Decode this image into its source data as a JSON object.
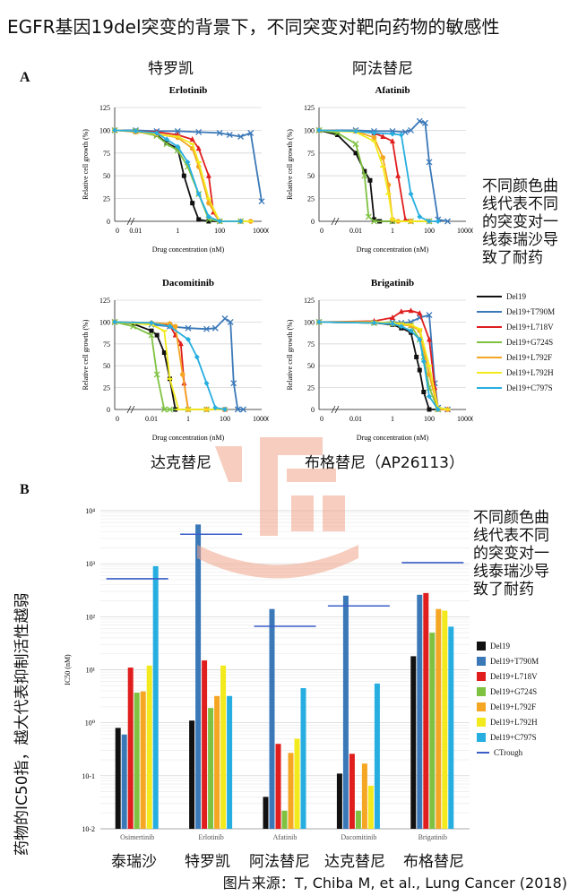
{
  "title": "EGFR基因19del突变的背景下，不同突变对靶向药物的敏感性",
  "panel_a_label": "A",
  "panel_b_label": "B",
  "side_note": "不同颜色曲线代表不同的突变对一线泰瑞沙导致了耐药",
  "side_note_b": "不同颜色曲线代表不同的突变对一线泰瑞沙导致了耐药",
  "vertical_note": "药物的IC50指，越大代表抑制活性越弱",
  "source": "图片来源：T, Chiba M, et al., Lung Cancer (2018)",
  "colors": {
    "Del19": "#111111",
    "Del19+T790M": "#3a78b8",
    "Del19+L718V": "#e01e1e",
    "Del19+G724S": "#7fc241",
    "Del19+L792F": "#f5a623",
    "Del19+L792H": "#f2ea1c",
    "Del19+C797S": "#27aee0"
  },
  "chart_data": [
    {
      "type": "line",
      "panel": "A",
      "cn_title": "特罗凯",
      "title": "Erlotinib",
      "xlabel": "Drug concentration (nM)",
      "ylabel": "Relative cell growth (%)",
      "xscale": "log",
      "xticks": [
        "0",
        "0.01",
        "1",
        "100",
        "10000"
      ],
      "xrange": [
        0.001,
        10000
      ],
      "yticks": [
        "0",
        "25",
        "50",
        "75",
        "100",
        "125"
      ],
      "ylim": [
        0,
        125
      ],
      "series": [
        {
          "name": "Del19",
          "x": [
            0.001,
            0.01,
            0.1,
            0.3,
            1,
            2,
            5,
            10,
            30,
            100,
            1000
          ],
          "y": [
            100,
            99,
            95,
            86,
            80,
            50,
            20,
            2,
            0,
            0,
            0
          ]
        },
        {
          "name": "Del19+T790M",
          "x": [
            0.001,
            0.01,
            0.1,
            1,
            10,
            100,
            300,
            1000,
            3000,
            10000
          ],
          "y": [
            100,
            100,
            99,
            99,
            98,
            97,
            95,
            93,
            97,
            22
          ]
        },
        {
          "name": "Del19+L718V",
          "x": [
            0.001,
            0.01,
            0.1,
            1,
            5,
            10,
            30,
            50,
            100,
            1000
          ],
          "y": [
            100,
            99,
            98,
            95,
            90,
            80,
            50,
            10,
            0,
            0
          ]
        },
        {
          "name": "Del19+G724S",
          "x": [
            0.001,
            0.01,
            0.1,
            0.3,
            1,
            3,
            10,
            30,
            100,
            1000
          ],
          "y": [
            100,
            99,
            94,
            85,
            78,
            60,
            30,
            2,
            0,
            0
          ]
        },
        {
          "name": "Del19+L792F",
          "x": [
            0.001,
            0.01,
            0.1,
            1,
            5,
            10,
            30,
            100,
            1000,
            3000
          ],
          "y": [
            100,
            98,
            96,
            92,
            80,
            60,
            20,
            0,
            0,
            0
          ]
        },
        {
          "name": "Del19+L792H",
          "x": [
            0.001,
            0.01,
            0.1,
            1,
            5,
            10,
            30,
            100,
            1000,
            3000
          ],
          "y": [
            100,
            99,
            96,
            93,
            85,
            65,
            25,
            0,
            0,
            0
          ]
        },
        {
          "name": "Del19+C797S",
          "x": [
            0.001,
            0.01,
            0.1,
            0.3,
            1,
            3,
            10,
            30,
            100,
            1000
          ],
          "y": [
            100,
            99,
            97,
            90,
            82,
            65,
            30,
            5,
            0,
            0
          ]
        }
      ]
    },
    {
      "type": "line",
      "panel": "A",
      "cn_title": "阿法替尼",
      "title": "Afatinib",
      "xlabel": "Drug concentration (nM)",
      "ylabel": "Relative cell growth (%)",
      "xscale": "log",
      "xticks": [
        "0",
        "0.01",
        "1",
        "100",
        "10000"
      ],
      "xrange": [
        0.0001,
        10000
      ],
      "yticks": [
        "0",
        "25",
        "50",
        "75",
        "100",
        "125"
      ],
      "ylim": [
        0,
        125
      ],
      "series": [
        {
          "name": "Del19",
          "x": [
            0.0001,
            0.001,
            0.01,
            0.03,
            0.06,
            0.1,
            0.2,
            1,
            10,
            100
          ],
          "y": [
            100,
            95,
            75,
            55,
            45,
            2,
            0,
            0,
            0,
            0
          ]
        },
        {
          "name": "Del19+T790M",
          "x": [
            0.0001,
            0.01,
            0.1,
            1,
            5,
            10,
            30,
            60,
            100,
            300,
            1000
          ],
          "y": [
            100,
            100,
            99,
            99,
            98,
            100,
            110,
            108,
            65,
            2,
            0
          ]
        },
        {
          "name": "Del19+L718V",
          "x": [
            0.0001,
            0.01,
            0.1,
            0.3,
            1,
            2,
            5,
            10,
            100
          ],
          "y": [
            100,
            99,
            97,
            93,
            88,
            50,
            2,
            0,
            0
          ]
        },
        {
          "name": "Del19+G724S",
          "x": [
            0.0001,
            0.001,
            0.01,
            0.03,
            0.05,
            0.1,
            1,
            10,
            100
          ],
          "y": [
            100,
            97,
            85,
            50,
            5,
            0,
            0,
            0,
            0
          ]
        },
        {
          "name": "Del19+L792F",
          "x": [
            0.0001,
            0.01,
            0.1,
            0.3,
            0.6,
            1,
            2,
            10,
            100
          ],
          "y": [
            100,
            99,
            92,
            70,
            40,
            2,
            0,
            0,
            0
          ]
        },
        {
          "name": "Del19+L792H",
          "x": [
            0.0001,
            0.01,
            0.1,
            0.3,
            0.6,
            1,
            2,
            10,
            100
          ],
          "y": [
            100,
            98,
            88,
            60,
            30,
            2,
            0,
            0,
            0
          ]
        },
        {
          "name": "Del19+C797S",
          "x": [
            0.0001,
            0.01,
            0.1,
            1,
            3,
            10,
            30,
            100,
            300
          ],
          "y": [
            100,
            99,
            97,
            96,
            95,
            30,
            5,
            0,
            0
          ]
        }
      ]
    },
    {
      "type": "line",
      "panel": "A",
      "cn_title": "达克替尼",
      "title": "Dacomitinib",
      "xlabel": "Drug concentration (nM)",
      "ylabel": "Relative cell growth (%)",
      "xscale": "log",
      "xticks": [
        "0",
        "0.01",
        "1",
        "100",
        "10000"
      ],
      "xrange": [
        0.0001,
        10000
      ],
      "yticks": [
        "0",
        "25",
        "50",
        "75",
        "100",
        "125"
      ],
      "ylim": [
        0,
        125
      ],
      "series": [
        {
          "name": "Del19",
          "x": [
            0.0001,
            0.001,
            0.01,
            0.02,
            0.05,
            0.1,
            0.2,
            1,
            10,
            100
          ],
          "y": [
            100,
            98,
            90,
            85,
            65,
            35,
            0,
            0,
            0,
            0
          ]
        },
        {
          "name": "Del19+T790M",
          "x": [
            0.0001,
            0.01,
            0.1,
            1,
            10,
            30,
            100,
            200,
            300,
            500,
            1000
          ],
          "y": [
            100,
            97,
            95,
            93,
            92,
            93,
            104,
            100,
            30,
            0,
            0
          ]
        },
        {
          "name": "Del19+L718V",
          "x": [
            0.0001,
            0.01,
            0.1,
            0.2,
            0.4,
            0.6,
            1,
            10,
            100
          ],
          "y": [
            100,
            99,
            96,
            85,
            75,
            30,
            0,
            0,
            0
          ]
        },
        {
          "name": "Del19+G724S",
          "x": [
            0.0001,
            0.001,
            0.01,
            0.02,
            0.05,
            0.1,
            1,
            10
          ],
          "y": [
            100,
            95,
            85,
            40,
            0,
            0,
            0,
            0
          ]
        },
        {
          "name": "Del19+L792F",
          "x": [
            0.0001,
            0.01,
            0.1,
            0.2,
            0.5,
            1,
            10,
            100
          ],
          "y": [
            100,
            99,
            98,
            95,
            40,
            0,
            0,
            0
          ]
        },
        {
          "name": "Del19+L792H",
          "x": [
            0.0001,
            0.01,
            0.05,
            0.1,
            0.3,
            1,
            10,
            100
          ],
          "y": [
            100,
            97,
            90,
            35,
            0,
            0,
            0,
            0
          ]
        },
        {
          "name": "Del19+C797S",
          "x": [
            0.0001,
            0.01,
            0.1,
            1,
            3,
            10,
            30,
            100
          ],
          "y": [
            100,
            99,
            95,
            80,
            60,
            30,
            2,
            0
          ]
        }
      ]
    },
    {
      "type": "line",
      "panel": "A",
      "cn_title": "布格替尼（AP26113）",
      "title": "Brigatinib",
      "xlabel": "Drug concentration (nM)",
      "ylabel": "Relative cell growth (%)",
      "xscale": "log",
      "xticks": [
        "0",
        "0.01",
        "1",
        "100",
        "10000"
      ],
      "xrange": [
        0.0001,
        10000
      ],
      "yticks": [
        "0",
        "25",
        "50",
        "75",
        "100",
        "125"
      ],
      "ylim": [
        0,
        125
      ],
      "series": [
        {
          "name": "Del19",
          "x": [
            0.0001,
            0.1,
            1,
            3,
            10,
            20,
            30,
            50,
            100,
            300
          ],
          "y": [
            100,
            99,
            97,
            93,
            88,
            60,
            45,
            20,
            0,
            0
          ]
        },
        {
          "name": "Del19+T790M",
          "x": [
            0.0001,
            0.1,
            1,
            3,
            10,
            30,
            100,
            200,
            300,
            1000
          ],
          "y": [
            100,
            99,
            100,
            99,
            100,
            105,
            108,
            30,
            2,
            0
          ]
        },
        {
          "name": "Del19+L718V",
          "x": [
            0.0001,
            0.1,
            1,
            3,
            10,
            30,
            100,
            200,
            300,
            1000
          ],
          "y": [
            100,
            101,
            105,
            112,
            113,
            110,
            80,
            25,
            0,
            0
          ]
        },
        {
          "name": "Del19+G724S",
          "x": [
            0.0001,
            0.1,
            1,
            3,
            10,
            30,
            50,
            100,
            300
          ],
          "y": [
            100,
            99,
            98,
            97,
            96,
            80,
            60,
            25,
            0
          ]
        },
        {
          "name": "Del19+L792F",
          "x": [
            0.0001,
            0.1,
            1,
            3,
            10,
            30,
            100,
            300,
            1000
          ],
          "y": [
            100,
            99,
            98,
            97,
            96,
            90,
            40,
            0,
            0
          ]
        },
        {
          "name": "Del19+L792H",
          "x": [
            0.0001,
            0.1,
            1,
            3,
            10,
            30,
            100,
            300,
            1000
          ],
          "y": [
            100,
            100,
            99,
            98,
            97,
            92,
            50,
            2,
            0
          ]
        },
        {
          "name": "Del19+C797S",
          "x": [
            0.0001,
            0.1,
            1,
            3,
            10,
            30,
            50,
            100,
            300
          ],
          "y": [
            100,
            99,
            98,
            95,
            90,
            80,
            55,
            15,
            0
          ]
        }
      ]
    },
    {
      "type": "bar",
      "panel": "B",
      "ylabel": "IC50 (nM)",
      "yscale": "log",
      "ylim": [
        0.01,
        10000
      ],
      "yticks": [
        "10-2",
        "10-1",
        "10⁰",
        "10¹",
        "10²",
        "10³",
        "10⁴"
      ],
      "categories": [
        "Osimertinib",
        "Erlotinib",
        "Afatinib",
        "Dacomitinib",
        "Brigatinib"
      ],
      "cn_categories": [
        "泰瑞沙",
        "特罗凯",
        "阿法替尼",
        "达克替尼",
        "布格替尼"
      ],
      "series": [
        {
          "name": "Del19",
          "values": [
            0.8,
            1.1,
            0.04,
            0.11,
            18
          ]
        },
        {
          "name": "Del19+T790M",
          "values": [
            0.6,
            5500,
            140,
            250,
            260
          ]
        },
        {
          "name": "Del19+L718V",
          "values": [
            11,
            15,
            0.4,
            0.26,
            280
          ]
        },
        {
          "name": "Del19+G724S",
          "values": [
            3.7,
            1.9,
            0.022,
            0.022,
            50
          ]
        },
        {
          "name": "Del19+L792F",
          "values": [
            3.9,
            3.2,
            0.27,
            0.17,
            140
          ]
        },
        {
          "name": "Del19+L792H",
          "values": [
            12,
            12,
            0.5,
            0.065,
            130
          ]
        },
        {
          "name": "Del19+C797S",
          "values": [
            900,
            3.2,
            4.5,
            5.5,
            65
          ]
        }
      ],
      "ctrough": [
        520,
        3600,
        66,
        160,
        1050
      ],
      "legend_extra": "CTrough"
    }
  ]
}
